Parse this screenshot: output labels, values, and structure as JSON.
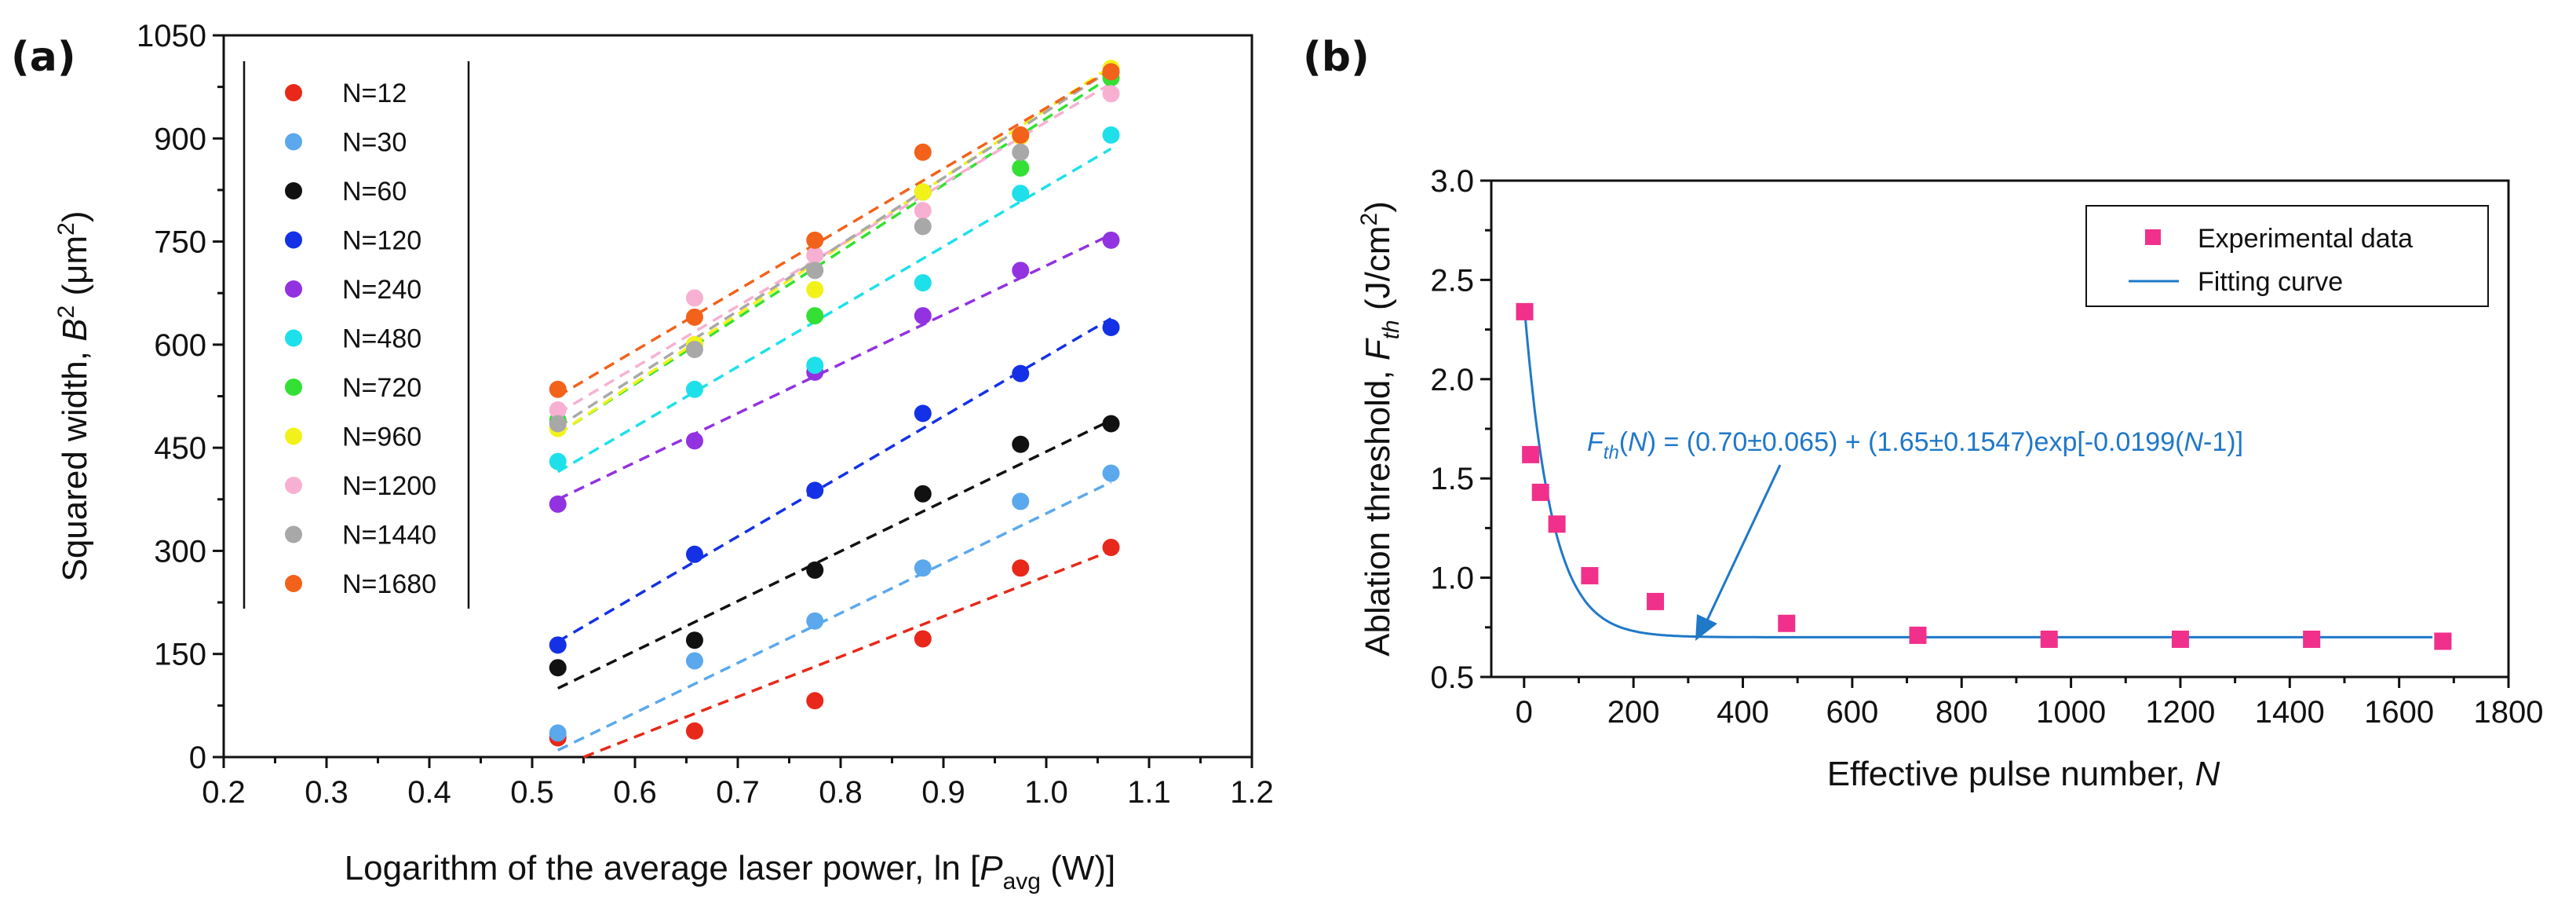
{
  "chart_data": [
    {
      "panel": "(a)",
      "type": "scatter",
      "xlabel": {
        "text": "Logarithm of the average laser power, ln [",
        "var": "P",
        "sub": "avg",
        "tail": " (W)]"
      },
      "ylabel": {
        "text": "Squared width, ",
        "var": "B",
        "sup": "2",
        "unit_pre": " (μm",
        "unit_sup": "2",
        "unit_post": ")"
      },
      "xlim": [
        0.2,
        1.2
      ],
      "ylim": [
        0,
        1050
      ],
      "xticks": [
        "0.2",
        "0.3",
        "0.4",
        "0.5",
        "0.6",
        "0.7",
        "0.8",
        "0.9",
        "1.0",
        "1.1",
        "1.2"
      ],
      "yticks": [
        "0",
        "150",
        "300",
        "450",
        "600",
        "750",
        "900",
        "1050"
      ],
      "x": [
        0.525,
        0.658,
        0.775,
        0.88,
        0.975,
        1.063
      ],
      "fit": "dashed linear fit per series",
      "series": [
        {
          "name": "N=12",
          "color": "#e8281a",
          "values": [
            28,
            38,
            82,
            172,
            275,
            305
          ],
          "fit": [
            0.55,
            1.063,
            0,
            300
          ]
        },
        {
          "name": "N=30",
          "color": "#5ba8ec",
          "values": [
            35,
            140,
            198,
            275,
            372,
            413
          ],
          "fit": [
            0.525,
            1.063,
            10,
            400
          ]
        },
        {
          "name": "N=60",
          "color": "#111111",
          "values": [
            130,
            170,
            272,
            383,
            455,
            485
          ],
          "fit": [
            0.525,
            1.063,
            100,
            490
          ]
        },
        {
          "name": "N=120",
          "color": "#1431e6",
          "values": [
            163,
            295,
            388,
            500,
            558,
            625
          ],
          "fit": [
            0.525,
            1.063,
            168,
            638
          ]
        },
        {
          "name": "N=240",
          "color": "#9232e0",
          "values": [
            368,
            460,
            560,
            642,
            708,
            752
          ],
          "fit": [
            0.525,
            1.063,
            375,
            760
          ]
        },
        {
          "name": "N=480",
          "color": "#1ee0ea",
          "values": [
            430,
            535,
            570,
            690,
            820,
            905
          ],
          "fit": [
            0.525,
            1.063,
            415,
            885
          ]
        },
        {
          "name": "N=720",
          "color": "#33e033",
          "values": [
            490,
            600,
            642,
            822,
            857,
            988
          ],
          "fit": [
            0.525,
            1.063,
            470,
            990
          ]
        },
        {
          "name": "N=960",
          "color": "#f2f21a",
          "values": [
            478,
            600,
            680,
            822,
            903,
            1002
          ],
          "fit": [
            0.525,
            1.063,
            470,
            1005
          ]
        },
        {
          "name": "N=1200",
          "color": "#f8b0d2",
          "values": [
            505,
            668,
            730,
            795,
            905,
            965
          ],
          "fit": [
            0.525,
            1.063,
            500,
            980
          ]
        },
        {
          "name": "N=1440",
          "color": "#a8a8a8",
          "values": [
            485,
            593,
            708,
            772,
            880,
            997
          ],
          "fit": [
            0.525,
            1.063,
            480,
            1000
          ]
        },
        {
          "name": "N=1680",
          "color": "#f2621a",
          "values": [
            535,
            640,
            752,
            880,
            905,
            997
          ],
          "fit": [
            0.525,
            1.063,
            525,
            1000
          ]
        }
      ]
    },
    {
      "panel": "(b)",
      "type": "scatter",
      "xlabel": {
        "text": "Effective pulse number, ",
        "var": "N"
      },
      "ylabel": {
        "text": "Ablation threshold, ",
        "var": "F",
        "sub": "th",
        "unit_pre": " (J/cm",
        "unit_sup": "2",
        "unit_post": ")"
      },
      "xlim": [
        -60,
        1800
      ],
      "ylim": [
        0.5,
        3.0
      ],
      "xticks": [
        "0",
        "200",
        "400",
        "600",
        "800",
        "1000",
        "1200",
        "1400",
        "1600",
        "1800"
      ],
      "yticks": [
        "0.5",
        "1.0",
        "1.5",
        "2.0",
        "2.5",
        "3.0"
      ],
      "legend": [
        "Experimental data",
        "Fitting curve"
      ],
      "marker_color": "#f0308a",
      "curve_color": "#1f78c8",
      "points": {
        "x": [
          1,
          12,
          30,
          60,
          120,
          240,
          480,
          720,
          960,
          1200,
          1440,
          1680
        ],
        "y": [
          2.34,
          1.62,
          1.43,
          1.27,
          1.01,
          0.88,
          0.77,
          0.71,
          0.69,
          0.69,
          0.69,
          0.68
        ]
      },
      "fit_model": {
        "y0": 0.7,
        "A": 1.65,
        "k": 0.0199
      },
      "equation": {
        "lhs_var": "F",
        "lhs_sub": "th",
        "lhs_arg_open": "(",
        "lhs_arg": "N",
        "lhs_arg_close": ")",
        "rhs_a": " = (0.70±0.065) + (1.65±0.1547)exp[-0.0199(",
        "rhs_var": "N",
        "rhs_b": "-1)]"
      }
    }
  ]
}
